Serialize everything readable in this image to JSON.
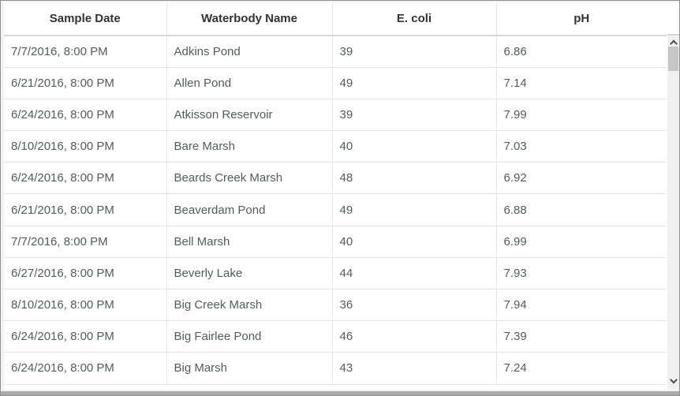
{
  "table": {
    "columns": [
      {
        "id": "sample-date",
        "label": "Sample Date"
      },
      {
        "id": "waterbody-name",
        "label": "Waterbody Name"
      },
      {
        "id": "ecoli",
        "label": "E. coli"
      },
      {
        "id": "ph",
        "label": "pH"
      }
    ],
    "rows": [
      [
        "7/7/2016, 8:00 PM",
        "Adkins Pond",
        "39",
        "6.86"
      ],
      [
        "6/21/2016, 8:00 PM",
        "Allen Pond",
        "49",
        "7.14"
      ],
      [
        "6/24/2016, 8:00 PM",
        "Atkisson Reservoir",
        "39",
        "7.99"
      ],
      [
        "8/10/2016, 8:00 PM",
        "Bare Marsh",
        "40",
        "7.03"
      ],
      [
        "6/24/2016, 8:00 PM",
        "Beards Creek Marsh",
        "48",
        "6.92"
      ],
      [
        "6/21/2016, 8:00 PM",
        "Beaverdam Pond",
        "49",
        "6.88"
      ],
      [
        "7/7/2016, 8:00 PM",
        "Bell Marsh",
        "40",
        "6.99"
      ],
      [
        "6/27/2016, 8:00 PM",
        "Beverly Lake",
        "44",
        "7.93"
      ],
      [
        "8/10/2016, 8:00 PM",
        "Big Creek Marsh",
        "36",
        "7.94"
      ],
      [
        "6/24/2016, 8:00 PM",
        "Big Fairlee Pond",
        "46",
        "7.39"
      ],
      [
        "6/24/2016, 8:00 PM",
        "Big Marsh",
        "43",
        "7.24"
      ]
    ]
  },
  "scrollbar": {
    "up_icon": "chevron-up",
    "down_icon": "chevron-down"
  },
  "colors": {
    "outer_border": "#8f8f8f",
    "page_bg": "#f3f3f3",
    "header_text": "#323232",
    "cell_text": "#56595d",
    "row_border": "#e3e3e3",
    "scroll_track": "#f0f0f0",
    "scroll_thumb": "#c6c6c6",
    "hbar_thumb": "#ababab"
  }
}
